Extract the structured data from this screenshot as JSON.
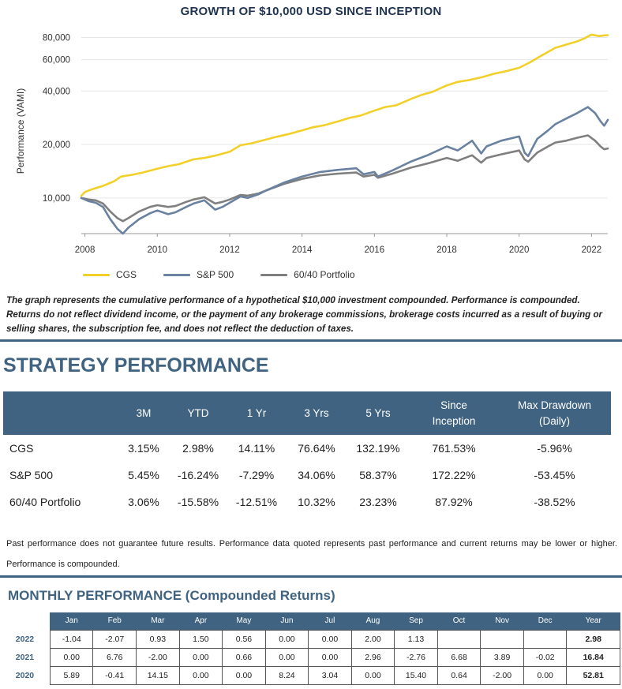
{
  "chart_data": {
    "type": "line",
    "title": "GROWTH OF $10,000 USD SINCE INCEPTION",
    "xlabel": "",
    "ylabel": "Performance (VAMI)",
    "y_scale": "log",
    "xlim": [
      2007.9,
      2022.45
    ],
    "ylim": [
      6300,
      90000
    ],
    "x_ticks": [
      2008,
      2010,
      2012,
      2014,
      2016,
      2018,
      2020,
      2022
    ],
    "y_ticks": [
      10000,
      20000,
      40000,
      60000,
      80000
    ],
    "y_tick_labels": [
      "10,000",
      "20,000",
      "40,000",
      "60,000",
      "80,000"
    ],
    "legend_position": "bottom",
    "series": [
      {
        "name": "CGS",
        "color": "#f2d02a",
        "x": [
          2007.9,
          2008.0,
          2008.2,
          2008.5,
          2008.8,
          2009.0,
          2009.3,
          2009.6,
          2010.0,
          2010.3,
          2010.6,
          2011.0,
          2011.3,
          2011.6,
          2012.0,
          2012.3,
          2012.6,
          2013.0,
          2013.3,
          2013.6,
          2014.0,
          2014.3,
          2014.6,
          2015.0,
          2015.3,
          2015.6,
          2016.0,
          2016.3,
          2016.6,
          2017.0,
          2017.3,
          2017.6,
          2018.0,
          2018.3,
          2018.6,
          2019.0,
          2019.3,
          2019.6,
          2020.0,
          2020.3,
          2020.6,
          2021.0,
          2021.3,
          2021.6,
          2021.8,
          2022.0,
          2022.2,
          2022.45
        ],
        "values": [
          10300,
          10800,
          11200,
          11700,
          12400,
          13200,
          13500,
          13900,
          14600,
          15100,
          15500,
          16500,
          16800,
          17300,
          18200,
          19800,
          20300,
          21300,
          22100,
          22800,
          24000,
          25000,
          25600,
          27000,
          28200,
          29000,
          31000,
          32500,
          33200,
          36000,
          38000,
          39500,
          43000,
          45000,
          46000,
          48000,
          50000,
          51500,
          54000,
          58000,
          63000,
          70000,
          73000,
          76000,
          79000,
          83000,
          81500,
          82500
        ]
      },
      {
        "name": "S&P 500",
        "color": "#6a82a0",
        "x": [
          2007.9,
          2008.1,
          2008.3,
          2008.5,
          2008.7,
          2008.9,
          2009.05,
          2009.2,
          2009.5,
          2009.8,
          2010.0,
          2010.3,
          2010.5,
          2010.8,
          2011.0,
          2011.3,
          2011.6,
          2011.8,
          2012.0,
          2012.3,
          2012.5,
          2012.8,
          2013.0,
          2013.5,
          2014.0,
          2014.5,
          2015.0,
          2015.5,
          2015.7,
          2016.0,
          2016.1,
          2016.5,
          2017.0,
          2017.5,
          2018.0,
          2018.3,
          2018.7,
          2018.95,
          2019.1,
          2019.5,
          2020.0,
          2020.15,
          2020.25,
          2020.5,
          2020.8,
          2021.0,
          2021.3,
          2021.6,
          2021.9,
          2022.1,
          2022.25,
          2022.35,
          2022.45
        ],
        "values": [
          10000,
          9600,
          9400,
          8900,
          7600,
          6700,
          6300,
          6800,
          7600,
          8200,
          8500,
          8100,
          8300,
          8900,
          9300,
          9700,
          8600,
          8900,
          9400,
          10200,
          10000,
          10500,
          11000,
          12200,
          13200,
          14000,
          14400,
          14700,
          13600,
          14000,
          13200,
          14300,
          16000,
          17500,
          19500,
          18500,
          21000,
          17800,
          19500,
          21000,
          22200,
          18000,
          17200,
          21500,
          24000,
          26000,
          28000,
          30000,
          32500,
          30000,
          27000,
          25500,
          27500
        ]
      },
      {
        "name": "60/40 Portfolio",
        "color": "#7f7f7f",
        "x": [
          2007.9,
          2008.1,
          2008.3,
          2008.5,
          2008.7,
          2008.9,
          2009.05,
          2009.2,
          2009.5,
          2009.8,
          2010.0,
          2010.3,
          2010.5,
          2010.8,
          2011.0,
          2011.3,
          2011.6,
          2011.8,
          2012.0,
          2012.3,
          2012.5,
          2012.8,
          2013.0,
          2013.5,
          2014.0,
          2014.5,
          2015.0,
          2015.5,
          2015.7,
          2016.0,
          2016.1,
          2016.5,
          2017.0,
          2017.5,
          2018.0,
          2018.3,
          2018.7,
          2018.95,
          2019.1,
          2019.5,
          2020.0,
          2020.15,
          2020.25,
          2020.5,
          2020.8,
          2021.0,
          2021.3,
          2021.6,
          2021.9,
          2022.1,
          2022.25,
          2022.35,
          2022.45
        ],
        "values": [
          10000,
          9800,
          9700,
          9300,
          8400,
          7700,
          7400,
          7700,
          8400,
          8900,
          9100,
          8900,
          9000,
          9500,
          9800,
          10100,
          9300,
          9500,
          9800,
          10400,
          10300,
          10600,
          11000,
          12000,
          12800,
          13400,
          13700,
          13900,
          13200,
          13500,
          13000,
          13700,
          14800,
          15700,
          16800,
          16200,
          17400,
          15800,
          16800,
          17600,
          18500,
          16500,
          16000,
          18000,
          19500,
          20500,
          21000,
          21800,
          22500,
          21000,
          19500,
          18800,
          19000
        ]
      }
    ]
  },
  "chart_footnote": "The graph represents the cumulative performance of a hypothetical $10,000 investment compounded. Performance is compounded. Returns do not reflect dividend income, or the payment of any brokerage commissions, brokerage costs incurred as a result of buying or selling shares, the subscription fee, and does not reflect the deduction of taxes.",
  "strategy": {
    "title": "STRATEGY PERFORMANCE",
    "columns": [
      "",
      "3M",
      "YTD",
      "1 Yr",
      "3 Yrs",
      "5 Yrs",
      "Since Inception",
      "Max Drawdown (Daily)"
    ],
    "rows": [
      [
        "CGS",
        "3.15%",
        "2.98%",
        "14.11%",
        "76.64%",
        "132.19%",
        "761.53%",
        "-5.96%"
      ],
      [
        "S&P 500",
        "5.45%",
        "-16.24%",
        "-7.29%",
        "34.06%",
        "58.37%",
        "172.22%",
        "-53.45%"
      ],
      [
        "60/40 Portfolio",
        "3.06%",
        "-15.58%",
        "-12.51%",
        "10.32%",
        "23.23%",
        "87.92%",
        "-38.52%"
      ]
    ]
  },
  "past_performance_note": "Past performance does not guarantee future results. Performance data quoted represents past performance and current returns may be lower or higher. Performance is compounded.",
  "monthly": {
    "title": "MONTHLY PERFORMANCE (Compounded Returns)",
    "columns": [
      "",
      "Jan",
      "Feb",
      "Mar",
      "Apr",
      "May",
      "Jun",
      "Jul",
      "Aug",
      "Sep",
      "Oct",
      "Nov",
      "Dec",
      "Year"
    ],
    "rows": [
      [
        "2022",
        "-1.04",
        "-2.07",
        "0.93",
        "1.50",
        "0.56",
        "0.00",
        "0.00",
        "2.00",
        "1.13",
        "",
        "",
        "",
        "2.98"
      ],
      [
        "2021",
        "0.00",
        "6.76",
        "-2.00",
        "0.00",
        "0.66",
        "0.00",
        "0.00",
        "2.96",
        "-2.76",
        "6.68",
        "3.89",
        "-0.02",
        "16.84"
      ],
      [
        "2020",
        "5.89",
        "-0.41",
        "14.15",
        "0.00",
        "0.00",
        "8.24",
        "3.04",
        "0.00",
        "15.40",
        "0.64",
        "-2.00",
        "0.00",
        "52.81"
      ]
    ]
  }
}
